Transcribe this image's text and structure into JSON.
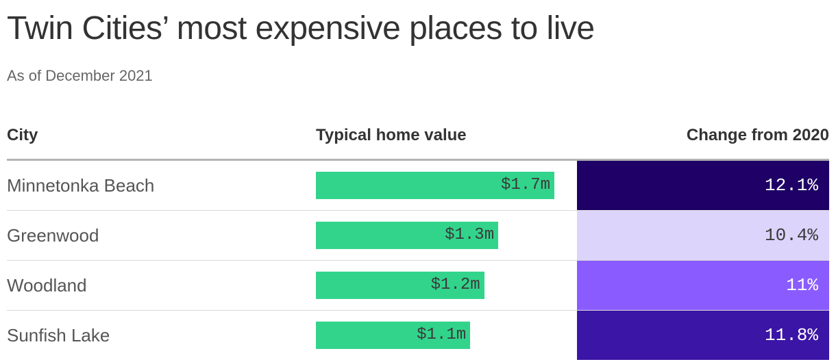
{
  "chart_data": {
    "type": "table",
    "title": "Twin Cities’ most expensive places to live",
    "subtitle": "As of December 2021",
    "columns": [
      "City",
      "Typical home value",
      "Change from 2020"
    ],
    "rows": [
      {
        "city": "Minnetonka Beach",
        "value": 1.7,
        "value_label": "$1.7m",
        "change": 12.1,
        "change_label": "12.1%",
        "cell_color": "#1e0066",
        "text_color": "#ffffff"
      },
      {
        "city": "Greenwood",
        "value": 1.3,
        "value_label": "$1.3m",
        "change": 10.4,
        "change_label": "10.4%",
        "cell_color": "#ddd4fc",
        "text_color": "#3a3a3a"
      },
      {
        "city": "Woodland",
        "value": 1.2,
        "value_label": "$1.2m",
        "change": 11,
        "change_label": "11%",
        "cell_color": "#8a5cff",
        "text_color": "#ffffff"
      },
      {
        "city": "Sunfish Lake",
        "value": 1.1,
        "value_label": "$1.1m",
        "change": 11.8,
        "change_label": "11.8%",
        "cell_color": "#3b15a6",
        "text_color": "#ffffff"
      }
    ],
    "bar_color": "#32d48c"
  }
}
